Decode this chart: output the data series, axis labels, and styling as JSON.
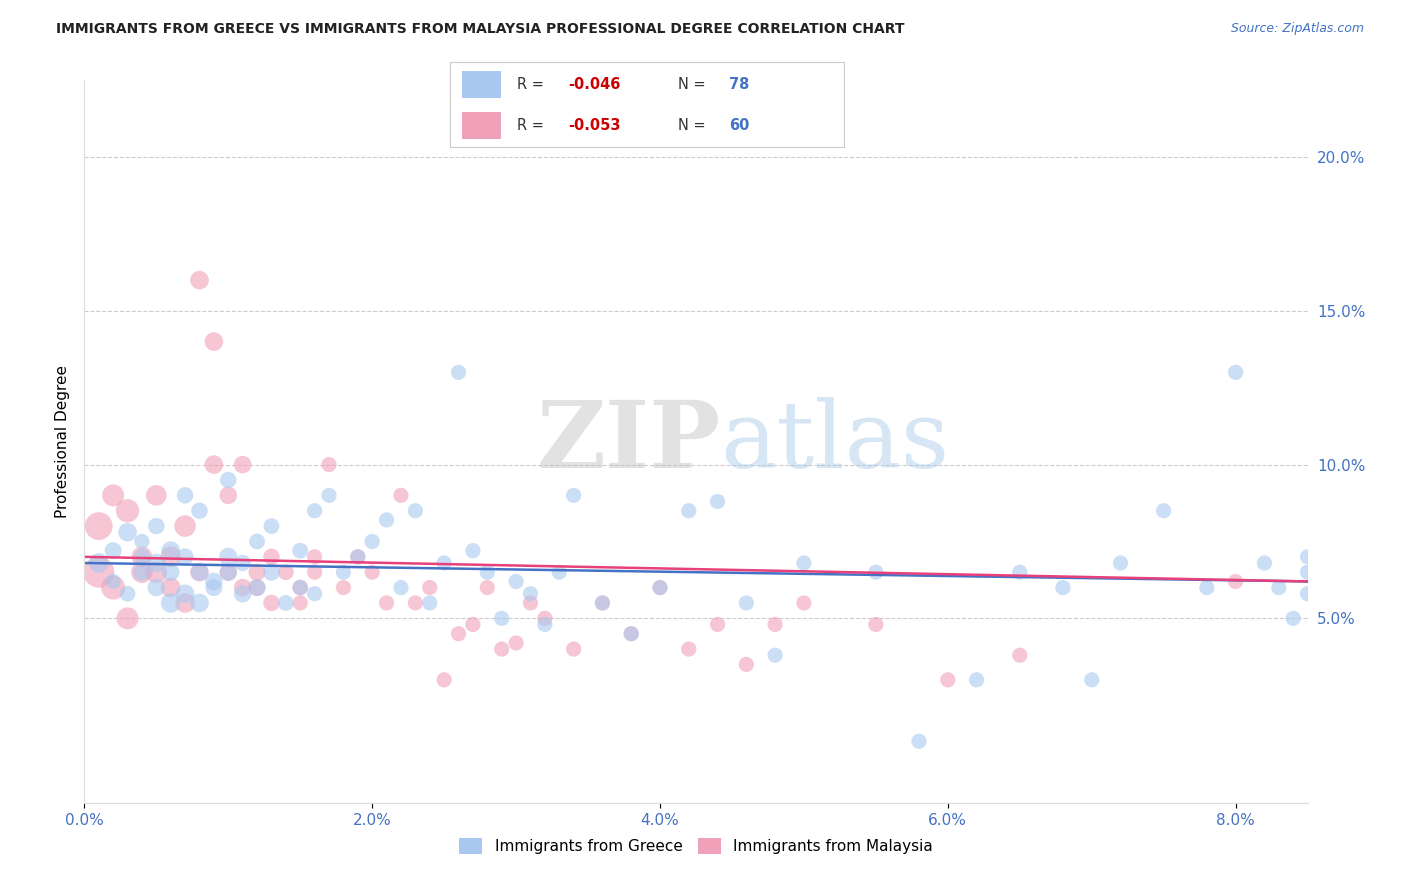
{
  "title": "IMMIGRANTS FROM GREECE VS IMMIGRANTS FROM MALAYSIA PROFESSIONAL DEGREE CORRELATION CHART",
  "source": "Source: ZipAtlas.com",
  "ylabel": "Professional Degree",
  "y_tick_labels": [
    "5.0%",
    "10.0%",
    "15.0%",
    "20.0%"
  ],
  "y_tick_vals": [
    0.05,
    0.1,
    0.15,
    0.2
  ],
  "xlim": [
    0.0,
    0.085
  ],
  "ylim": [
    -0.01,
    0.225
  ],
  "greece_color": "#a8c8f0",
  "malaysia_color": "#f0a0b8",
  "trendline_greece_color": "#4472c4",
  "trendline_malaysia_color": "#e8407a",
  "watermark_zip": "ZIP",
  "watermark_atlas": "atlas",
  "background_color": "#ffffff",
  "greece_x": [
    0.001,
    0.002,
    0.002,
    0.003,
    0.003,
    0.004,
    0.004,
    0.004,
    0.005,
    0.005,
    0.005,
    0.006,
    0.006,
    0.006,
    0.007,
    0.007,
    0.007,
    0.008,
    0.008,
    0.008,
    0.009,
    0.009,
    0.01,
    0.01,
    0.01,
    0.011,
    0.011,
    0.012,
    0.012,
    0.013,
    0.013,
    0.014,
    0.015,
    0.015,
    0.016,
    0.016,
    0.017,
    0.018,
    0.019,
    0.02,
    0.021,
    0.022,
    0.023,
    0.024,
    0.025,
    0.026,
    0.027,
    0.028,
    0.029,
    0.03,
    0.031,
    0.032,
    0.033,
    0.034,
    0.036,
    0.038,
    0.04,
    0.042,
    0.044,
    0.046,
    0.048,
    0.05,
    0.055,
    0.058,
    0.062,
    0.065,
    0.068,
    0.07,
    0.072,
    0.075,
    0.078,
    0.08,
    0.082,
    0.083,
    0.084,
    0.085,
    0.085,
    0.085
  ],
  "greece_y": [
    0.068,
    0.072,
    0.062,
    0.078,
    0.058,
    0.065,
    0.07,
    0.075,
    0.06,
    0.08,
    0.068,
    0.055,
    0.072,
    0.065,
    0.09,
    0.058,
    0.07,
    0.065,
    0.055,
    0.085,
    0.062,
    0.06,
    0.07,
    0.065,
    0.095,
    0.058,
    0.068,
    0.06,
    0.075,
    0.065,
    0.08,
    0.055,
    0.072,
    0.06,
    0.085,
    0.058,
    0.09,
    0.065,
    0.07,
    0.075,
    0.082,
    0.06,
    0.085,
    0.055,
    0.068,
    0.13,
    0.072,
    0.065,
    0.05,
    0.062,
    0.058,
    0.048,
    0.065,
    0.09,
    0.055,
    0.045,
    0.06,
    0.085,
    0.088,
    0.055,
    0.038,
    0.068,
    0.065,
    0.01,
    0.03,
    0.065,
    0.06,
    0.03,
    0.068,
    0.085,
    0.06,
    0.13,
    0.068,
    0.06,
    0.05,
    0.065,
    0.058,
    0.07
  ],
  "greece_size": [
    200,
    150,
    120,
    180,
    130,
    160,
    140,
    120,
    160,
    140,
    180,
    200,
    180,
    160,
    140,
    180,
    150,
    160,
    180,
    140,
    160,
    150,
    170,
    150,
    140,
    160,
    140,
    150,
    130,
    150,
    130,
    130,
    130,
    120,
    120,
    120,
    120,
    120,
    120,
    120,
    120,
    120,
    120,
    120,
    120,
    120,
    120,
    120,
    120,
    120,
    120,
    120,
    120,
    120,
    120,
    120,
    120,
    120,
    120,
    120,
    120,
    120,
    120,
    120,
    120,
    120,
    120,
    120,
    120,
    120,
    120,
    120,
    120,
    120,
    120,
    120,
    120,
    120
  ],
  "malaysia_x": [
    0.001,
    0.001,
    0.002,
    0.002,
    0.003,
    0.003,
    0.004,
    0.004,
    0.005,
    0.005,
    0.006,
    0.006,
    0.007,
    0.007,
    0.008,
    0.008,
    0.009,
    0.009,
    0.01,
    0.01,
    0.011,
    0.011,
    0.012,
    0.012,
    0.013,
    0.013,
    0.014,
    0.015,
    0.015,
    0.016,
    0.016,
    0.017,
    0.018,
    0.019,
    0.02,
    0.021,
    0.022,
    0.023,
    0.024,
    0.025,
    0.026,
    0.027,
    0.028,
    0.029,
    0.03,
    0.031,
    0.032,
    0.034,
    0.036,
    0.038,
    0.04,
    0.042,
    0.044,
    0.046,
    0.048,
    0.05,
    0.055,
    0.06,
    0.065,
    0.08
  ],
  "malaysia_y": [
    0.065,
    0.08,
    0.06,
    0.09,
    0.05,
    0.085,
    0.065,
    0.07,
    0.09,
    0.065,
    0.07,
    0.06,
    0.08,
    0.055,
    0.065,
    0.16,
    0.1,
    0.14,
    0.065,
    0.09,
    0.06,
    0.1,
    0.065,
    0.06,
    0.055,
    0.07,
    0.065,
    0.06,
    0.055,
    0.07,
    0.065,
    0.1,
    0.06,
    0.07,
    0.065,
    0.055,
    0.09,
    0.055,
    0.06,
    0.03,
    0.045,
    0.048,
    0.06,
    0.04,
    0.042,
    0.055,
    0.05,
    0.04,
    0.055,
    0.045,
    0.06,
    0.04,
    0.048,
    0.035,
    0.048,
    0.055,
    0.048,
    0.03,
    0.038,
    0.062
  ],
  "malaysia_size": [
    500,
    400,
    300,
    250,
    250,
    280,
    240,
    220,
    220,
    240,
    220,
    200,
    240,
    200,
    180,
    180,
    180,
    180,
    160,
    160,
    160,
    160,
    150,
    150,
    140,
    140,
    130,
    130,
    120,
    120,
    120,
    120,
    120,
    120,
    120,
    120,
    120,
    120,
    120,
    120,
    120,
    120,
    120,
    120,
    120,
    120,
    120,
    120,
    120,
    120,
    120,
    120,
    120,
    120,
    120,
    120,
    120,
    120,
    120,
    120
  ]
}
